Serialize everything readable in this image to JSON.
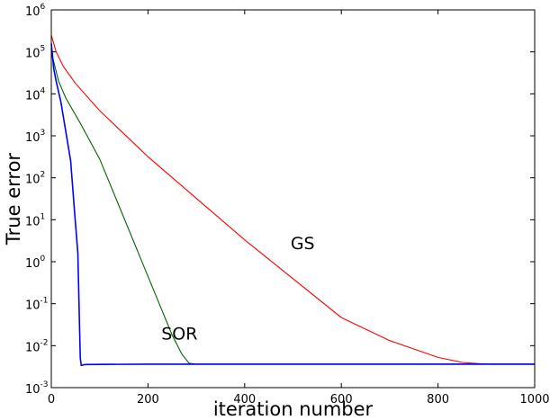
{
  "chart_data": {
    "type": "line",
    "title": "",
    "xlabel": "iteration number",
    "ylabel": "True error",
    "xlim": [
      0,
      1000
    ],
    "ylim_log10": [
      -3,
      6
    ],
    "yscale": "log",
    "grid": false,
    "x_ticks": [
      "0",
      "200",
      "400",
      "600",
      "800",
      "1000"
    ],
    "y_ticks": [
      {
        "base": "10",
        "exp": "6"
      },
      {
        "base": "10",
        "exp": "5"
      },
      {
        "base": "10",
        "exp": "4"
      },
      {
        "base": "10",
        "exp": "3"
      },
      {
        "base": "10",
        "exp": "2"
      },
      {
        "base": "10",
        "exp": "1"
      },
      {
        "base": "10",
        "exp": "0"
      },
      {
        "base": "10",
        "exp": "-1"
      },
      {
        "base": "10",
        "exp": "-2"
      },
      {
        "base": "10",
        "exp": "-3"
      }
    ],
    "annotations": [
      {
        "text": "GS",
        "x": 520,
        "log10_y": 0.3
      },
      {
        "text": "SOR",
        "x": 265,
        "log10_y": -1.85
      }
    ],
    "series": [
      {
        "name": "GS",
        "color": "#ff0000",
        "points": [
          [
            0,
            5.4
          ],
          [
            10,
            5.0
          ],
          [
            25,
            4.65
          ],
          [
            50,
            4.25
          ],
          [
            100,
            3.6
          ],
          [
            200,
            2.5
          ],
          [
            400,
            0.52
          ],
          [
            600,
            -1.33
          ],
          [
            700,
            -1.88
          ],
          [
            800,
            -2.28
          ],
          [
            850,
            -2.4
          ],
          [
            900,
            -2.44
          ],
          [
            1000,
            -2.44
          ]
        ]
      },
      {
        "name": "",
        "color": "#006400",
        "points": [
          [
            0,
            5.0
          ],
          [
            15,
            4.3
          ],
          [
            30,
            3.9
          ],
          [
            60,
            3.3
          ],
          [
            100,
            2.45
          ],
          [
            150,
            1.05
          ],
          [
            200,
            -0.35
          ],
          [
            250,
            -1.75
          ],
          [
            270,
            -2.2
          ],
          [
            285,
            -2.42
          ],
          [
            300,
            -2.44
          ],
          [
            600,
            -2.44
          ],
          [
            1000,
            -2.44
          ]
        ]
      },
      {
        "name": "",
        "color": "#0000ff",
        "points": [
          [
            0,
            5.2
          ],
          [
            5,
            4.6
          ],
          [
            10,
            4.3
          ],
          [
            20,
            3.8
          ],
          [
            30,
            3.1
          ],
          [
            40,
            2.4
          ],
          [
            48,
            1.2
          ],
          [
            55,
            0.2
          ],
          [
            58,
            -1.3
          ],
          [
            60,
            -2.3
          ],
          [
            62,
            -2.47
          ],
          [
            70,
            -2.45
          ],
          [
            200,
            -2.44
          ],
          [
            600,
            -2.44
          ],
          [
            1000,
            -2.44
          ]
        ]
      }
    ]
  }
}
